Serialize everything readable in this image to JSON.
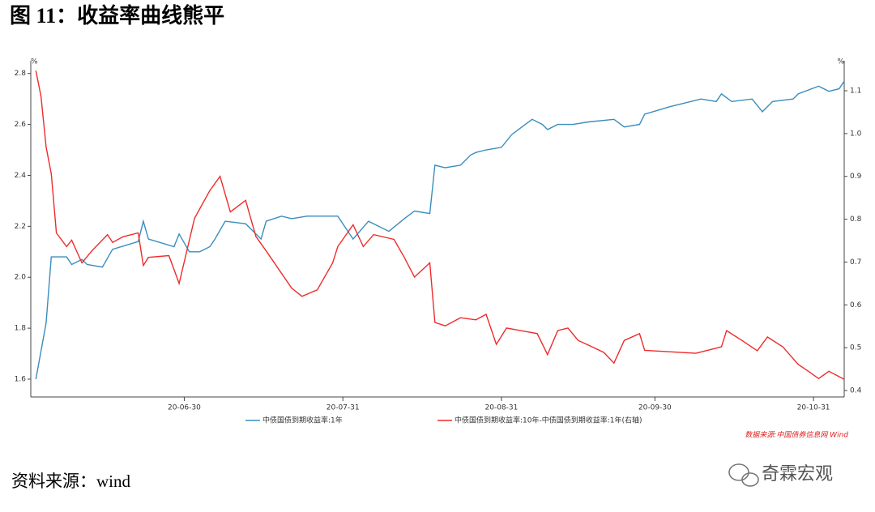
{
  "title": "图 11：收益率曲线熊平",
  "source": "资料来源：wind",
  "watermark": "奇霖宏观",
  "chart_data": {
    "type": "line",
    "note": "数据来源:中国债券信息网 Wind",
    "y_unit": "%",
    "y2_unit": "%",
    "xlim": [
      "20-05-31",
      "20-11-06"
    ],
    "xticks": [
      "20-06-30",
      "20-07-31",
      "20-08-31",
      "20-09-30",
      "20-10-31"
    ],
    "ylim": [
      1.53,
      2.85
    ],
    "yticks": [
      1.6,
      1.8,
      {
        "value": 2.0,
        "label": "2.0"
      },
      2.2,
      2.4,
      2.6,
      2.8
    ],
    "y2lim": [
      0.385,
      1.17
    ],
    "y2ticks": [
      0.4,
      0.5,
      0.6,
      0.7,
      0.8,
      0.9,
      {
        "value": 1.0,
        "label": "1.0"
      },
      1.1
    ],
    "series": [
      {
        "name": "中债国债到期收益率:1年",
        "color": "#3a8dbd",
        "axis": "y",
        "x": [
          "20-06-01",
          "20-06-03",
          "20-06-04",
          "20-06-07",
          "20-06-08",
          "20-06-10",
          "20-06-11",
          "20-06-14",
          "20-06-16",
          "20-06-21",
          "20-06-22",
          "20-06-23",
          "20-06-28",
          "20-06-29",
          "20-07-01",
          "20-07-03",
          "20-07-05",
          "20-07-06",
          "20-07-08",
          "20-07-12",
          "20-07-15",
          "20-07-16",
          "20-07-19",
          "20-07-21",
          "20-07-24",
          "20-07-27",
          "20-07-30",
          "20-08-02",
          "20-08-05",
          "20-08-09",
          "20-08-12",
          "20-08-14",
          "20-08-17",
          "20-08-18",
          "20-08-20",
          "20-08-23",
          "20-08-25",
          "20-08-26",
          "20-08-28",
          "20-08-31",
          "20-09-02",
          "20-09-04",
          "20-09-06",
          "20-09-08",
          "20-09-09",
          "20-09-11",
          "20-09-14",
          "20-09-17",
          "20-09-22",
          "20-09-24",
          "20-09-27",
          "20-09-28",
          "20-10-03",
          "20-10-09",
          "20-10-12",
          "20-10-13",
          "20-10-15",
          "20-10-19",
          "20-10-21",
          "20-10-23",
          "20-10-27",
          "20-10-28",
          "20-11-01",
          "20-11-03",
          "20-11-05",
          "20-11-06"
        ],
        "values": [
          1.6,
          1.82,
          2.08,
          2.08,
          2.05,
          2.07,
          2.05,
          2.04,
          2.11,
          2.14,
          2.22,
          2.15,
          2.12,
          2.17,
          2.1,
          2.1,
          2.12,
          2.15,
          2.22,
          2.21,
          2.15,
          2.22,
          2.24,
          2.23,
          2.24,
          2.24,
          2.24,
          2.15,
          2.22,
          2.18,
          2.23,
          2.26,
          2.25,
          2.44,
          2.43,
          2.44,
          2.48,
          2.49,
          2.5,
          2.51,
          2.56,
          2.59,
          2.62,
          2.6,
          2.58,
          2.6,
          2.6,
          2.61,
          2.62,
          2.59,
          2.6,
          2.64,
          2.67,
          2.7,
          2.69,
          2.72,
          2.69,
          2.7,
          2.65,
          2.69,
          2.7,
          2.72,
          2.75,
          2.73,
          2.74,
          2.77
        ]
      },
      {
        "name": "中债国债到期收益率:10年-中债国债到期收益率:1年(右轴)",
        "color": "#ee2b2b",
        "axis": "y2",
        "x": [
          "20-06-01",
          "20-06-02",
          "20-06-03",
          "20-06-04",
          "20-06-05",
          "20-06-07",
          "20-06-08",
          "20-06-10",
          "20-06-12",
          "20-06-15",
          "20-06-16",
          "20-06-18",
          "20-06-21",
          "20-06-22",
          "20-06-23",
          "20-06-27",
          "20-06-29",
          "20-07-02",
          "20-07-05",
          "20-07-07",
          "20-07-09",
          "20-07-12",
          "20-07-14",
          "20-07-16",
          "20-07-21",
          "20-07-23",
          "20-07-26",
          "20-07-29",
          "20-07-30",
          "20-08-02",
          "20-08-04",
          "20-08-06",
          "20-08-10",
          "20-08-12",
          "20-08-14",
          "20-08-17",
          "20-08-18",
          "20-08-20",
          "20-08-23",
          "20-08-26",
          "20-08-28",
          "20-08-30",
          "20-09-01",
          "20-09-07",
          "20-09-09",
          "20-09-11",
          "20-09-13",
          "20-09-15",
          "20-09-17",
          "20-09-20",
          "20-09-22",
          "20-09-24",
          "20-09-27",
          "20-09-28",
          "20-10-08",
          "20-10-13",
          "20-10-14",
          "20-10-17",
          "20-10-20",
          "20-10-22",
          "20-10-25",
          "20-10-28",
          "20-10-30",
          "20-11-01",
          "20-11-03",
          "20-11-06"
        ],
        "values": [
          1.147,
          1.087,
          0.969,
          0.906,
          0.768,
          0.736,
          0.751,
          0.698,
          0.727,
          0.764,
          0.746,
          0.759,
          0.768,
          0.692,
          0.711,
          0.715,
          0.65,
          0.802,
          0.867,
          0.9,
          0.817,
          0.844,
          0.76,
          0.726,
          0.639,
          0.62,
          0.635,
          0.698,
          0.736,
          0.787,
          0.736,
          0.764,
          0.753,
          0.711,
          0.665,
          0.698,
          0.559,
          0.551,
          0.57,
          0.565,
          0.578,
          0.508,
          0.546,
          0.533,
          0.484,
          0.54,
          0.546,
          0.517,
          0.506,
          0.489,
          0.464,
          0.517,
          0.533,
          0.494,
          0.487,
          0.502,
          0.54,
          0.517,
          0.493,
          0.525,
          0.502,
          0.461,
          0.445,
          0.428,
          0.445,
          0.426
        ]
      }
    ]
  }
}
